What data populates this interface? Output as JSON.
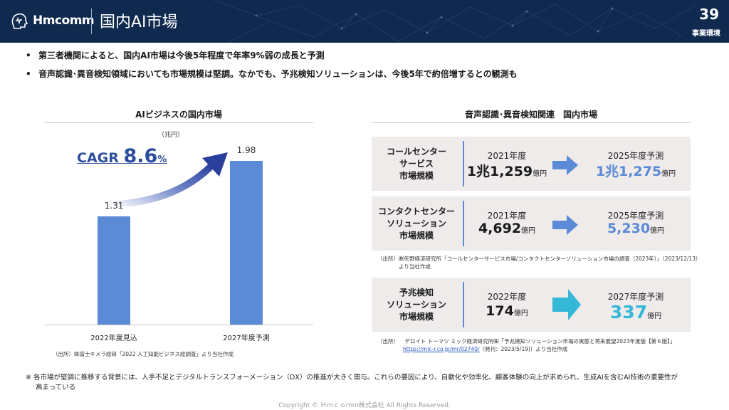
{
  "header": {
    "logo_text": "Hmcomm",
    "title": "国内AI市場",
    "page_number": "39",
    "section": "事業環境"
  },
  "bullets": [
    "第三者機関によると、国内AI市場は今後5年程度で年率9%弱の成長と予測",
    "音声認識･異音検知領域においても市場規模は堅調。なかでも、予兆検知ソリューションは、今後5年で約倍増するとの観測も"
  ],
  "left_panel": {
    "title": "AIビジネスの国内市場",
    "unit": "（兆円）",
    "cagr_prefix": "CAGR ",
    "cagr_value": "8.6",
    "cagr_suffix": "%",
    "source": "（出所）㈱富士キメラ総研「2022 人工知能ビジネス総調査」より当社作成"
  },
  "chart_data": {
    "type": "bar",
    "title": "AIビジネスの国内市場",
    "ylabel": "（兆円）",
    "categories": [
      "2022年度見込",
      "2027年度予測"
    ],
    "values": [
      1.31,
      1.98
    ],
    "value_labels": [
      "1.31",
      "1.98"
    ],
    "ylim": [
      0,
      2.2
    ],
    "annotation": "CAGR 8.6%",
    "colors": {
      "bar": "#5b8ad6"
    }
  },
  "right_panel": {
    "title": "音声認識･異音検知関連　国内市場",
    "rows": [
      {
        "label_lines": [
          "コールセンター",
          "サービス",
          "市場規模"
        ],
        "from_year": "2021年度",
        "from_value": "1兆1,259",
        "from_unit": "億円",
        "to_year": "2025年度予測",
        "to_value": "1兆1,275",
        "to_unit": "億円"
      },
      {
        "label_lines": [
          "コンタクトセンター",
          "ソリューション",
          "市場規模"
        ],
        "from_year": "2021年度",
        "from_value": "4,692",
        "from_unit": "億円",
        "to_year": "2025年度予測",
        "to_value": "5,230",
        "to_unit": "億円"
      },
      {
        "label_lines": [
          "予兆検知",
          "ソリューション",
          "市場規模"
        ],
        "from_year": "2022年度",
        "from_value": "174",
        "from_unit": "億円",
        "to_year": "2027年度予測",
        "to_value": "337",
        "to_unit": "億円"
      }
    ],
    "source1_label": "（出所）",
    "source1_text": "㈱矢野経済研究所「コールセンターサービス市場/コンタクトセンターソリューション市場の調査（2023年）」（2023/12/13）",
    "source1_text2": "より当社作成",
    "source2_label": "（出所）",
    "source2_text": "デロイト トーマツ ミック経済研究所㈱「予兆検知ソリューション市場の実態と将来展望2023年度版【第６版】」",
    "source2_link": "https://mic-r.co.jp/mr/02740/",
    "source2_text2": "（発刊：2023/5/19)）より当社作成"
  },
  "footnote_lines": [
    "※ 各市場が堅調に推移する背景には、人手不足とデジタルトランスフォーメーション（DX）の推進が大きく関与。これらの要因により、自動化や効率化、顧客体験の向上が求められ、生成AIを含むAI技術の重要性が",
    "高まっている"
  ],
  "copyright": "Copyright © Ｈｍｃｏｍｍ株式会社 All Rights Reserved.",
  "colors": {
    "header_bg": "#0f2a4e",
    "bar": "#5b8ad6",
    "cagr": "#2d4e9c",
    "panel_bg": "#eeebea",
    "accent_blue": "#5b8ad6",
    "arrow_cyan": "#35b8d8"
  }
}
